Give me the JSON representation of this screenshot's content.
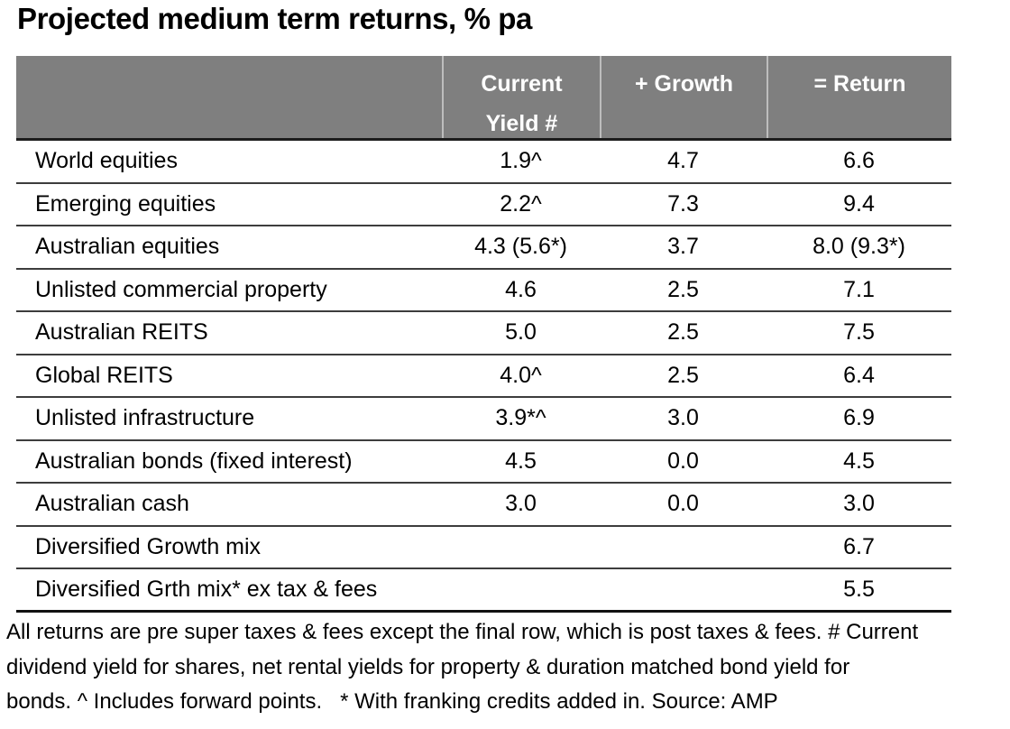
{
  "title": "Projected medium term returns, % pa",
  "table": {
    "header": {
      "assets": "",
      "current_yield_line1": "Current",
      "current_yield_line2": "Yield #",
      "growth": "+ Growth",
      "return": "= Return"
    },
    "rows": [
      {
        "label": "World equities",
        "yield": "1.9^",
        "growth": "4.7",
        "return": "6.6"
      },
      {
        "label": "Emerging equities",
        "yield": "2.2^",
        "growth": "7.3",
        "return": "9.4"
      },
      {
        "label": "Australian equities",
        "yield": "4.3 (5.6*)",
        "growth": "3.7",
        "return": "8.0 (9.3*)"
      },
      {
        "label": "Unlisted commercial property",
        "yield": "4.6",
        "growth": "2.5",
        "return": "7.1"
      },
      {
        "label": "Australian REITS",
        "yield": "5.0",
        "growth": "2.5",
        "return": "7.5"
      },
      {
        "label": "Global REITS",
        "yield": "4.0^",
        "growth": "2.5",
        "return": "6.4"
      },
      {
        "label": "Unlisted infrastructure",
        "yield": "3.9*^",
        "growth": "3.0",
        "return": "6.9"
      },
      {
        "label": "Australian bonds (fixed interest)",
        "yield": "4.5",
        "growth": "0.0",
        "return": "4.5"
      },
      {
        "label": "Australian cash",
        "yield": "3.0",
        "growth": "0.0",
        "return": "3.0"
      },
      {
        "label": "Diversified Growth mix",
        "yield": "",
        "growth": "",
        "return": "6.7"
      },
      {
        "label": "Diversified Grth mix* ex tax & fees",
        "yield": "",
        "growth": "",
        "return": "5.5"
      }
    ]
  },
  "footnote": {
    "lines": [
      "All returns are pre super taxes & fees except the final row, which is post taxes & fees. # Current",
      "dividend yield for shares, net rental yields for property & duration matched bond yield for",
      "bonds. ^ Includes forward points.   * With franking credits added in. Source: AMP"
    ],
    "source": "AMP"
  },
  "colors": {
    "header_bg": "#7f7f7f",
    "header_text": "#ffffff",
    "header_divider": "#bdbdbd",
    "row_border": "#3d3d3d",
    "table_bottom_border": "#111111",
    "text": "#000000",
    "background": "#ffffff"
  }
}
